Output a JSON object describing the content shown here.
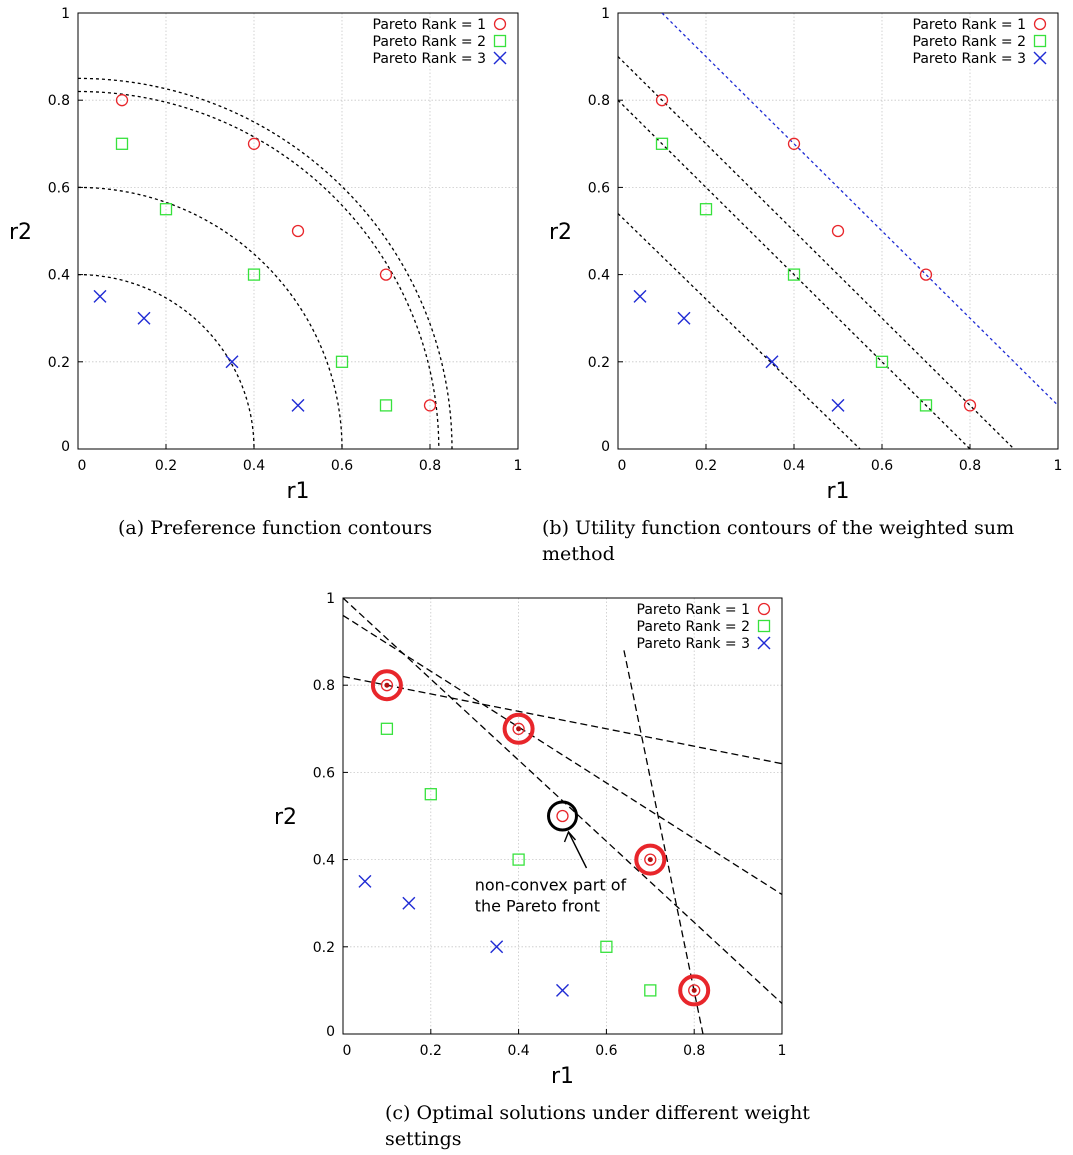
{
  "chart_data": [
    {
      "id": "a",
      "type": "scatter",
      "title": "",
      "caption": "(a) Preference function contours",
      "xlabel": "r1",
      "ylabel": "r2",
      "xlim": [
        0,
        1
      ],
      "ylim": [
        0,
        1
      ],
      "xticks": [
        "0",
        "0.2",
        "0.4",
        "0.6",
        "0.8",
        "1"
      ],
      "yticks": [
        "0",
        "0.2",
        "0.4",
        "0.6",
        "0.8",
        "1"
      ],
      "grid": true,
      "legend_position": "top-right",
      "series": [
        {
          "name": "Pareto Rank = 1",
          "marker": "circle",
          "color": "#e8262b",
          "points": [
            [
              0.1,
              0.8
            ],
            [
              0.4,
              0.7
            ],
            [
              0.5,
              0.5
            ],
            [
              0.7,
              0.4
            ],
            [
              0.8,
              0.1
            ]
          ]
        },
        {
          "name": "Pareto Rank = 2",
          "marker": "square",
          "color": "#37e23c",
          "points": [
            [
              0.1,
              0.7
            ],
            [
              0.2,
              0.55
            ],
            [
              0.4,
              0.4
            ],
            [
              0.6,
              0.2
            ],
            [
              0.7,
              0.1
            ]
          ]
        },
        {
          "name": "Pareto Rank = 3",
          "marker": "x",
          "color": "#1f2bd4",
          "points": [
            [
              0.05,
              0.35
            ],
            [
              0.15,
              0.3
            ],
            [
              0.35,
              0.2
            ],
            [
              0.5,
              0.1
            ]
          ]
        }
      ],
      "contours": [
        {
          "shape": "quarter-circle",
          "radius": 0.4,
          "color": "#000000"
        },
        {
          "shape": "quarter-circle",
          "radius": 0.6,
          "color": "#000000"
        },
        {
          "shape": "quarter-circle",
          "radius": 0.82,
          "color": "#000000"
        },
        {
          "shape": "quarter-circle",
          "radius": 0.85,
          "color": "#000000"
        }
      ]
    },
    {
      "id": "b",
      "type": "scatter",
      "title": "",
      "caption": "(b) Utility function contours of the weighted sum method",
      "xlabel": "r1",
      "ylabel": "r2",
      "xlim": [
        0,
        1
      ],
      "ylim": [
        0,
        1
      ],
      "xticks": [
        "0",
        "0.2",
        "0.4",
        "0.6",
        "0.8",
        "1"
      ],
      "yticks": [
        "0",
        "0.2",
        "0.4",
        "0.6",
        "0.8",
        "1"
      ],
      "grid": true,
      "legend_position": "top-right",
      "series": [
        {
          "name": "Pareto Rank = 1",
          "marker": "circle",
          "color": "#e8262b",
          "points": [
            [
              0.1,
              0.8
            ],
            [
              0.4,
              0.7
            ],
            [
              0.5,
              0.5
            ],
            [
              0.7,
              0.4
            ],
            [
              0.8,
              0.1
            ]
          ]
        },
        {
          "name": "Pareto Rank = 2",
          "marker": "square",
          "color": "#37e23c",
          "points": [
            [
              0.1,
              0.7
            ],
            [
              0.2,
              0.55
            ],
            [
              0.4,
              0.4
            ],
            [
              0.6,
              0.2
            ],
            [
              0.7,
              0.1
            ]
          ]
        },
        {
          "name": "Pareto Rank = 3",
          "marker": "x",
          "color": "#1f2bd4",
          "points": [
            [
              0.05,
              0.35
            ],
            [
              0.15,
              0.3
            ],
            [
              0.35,
              0.2
            ],
            [
              0.5,
              0.1
            ]
          ]
        }
      ],
      "contours": [
        {
          "shape": "line",
          "from": [
            0.1,
            1.0
          ],
          "to": [
            1.0,
            0.1
          ],
          "color": "#1f2bd4"
        },
        {
          "shape": "line",
          "from": [
            0.0,
            0.9
          ],
          "to": [
            0.9,
            0.0
          ],
          "color": "#000000"
        },
        {
          "shape": "line",
          "from": [
            0.0,
            0.8
          ],
          "to": [
            0.8,
            0.0
          ],
          "color": "#000000"
        },
        {
          "shape": "line",
          "from": [
            0.0,
            0.54
          ],
          "to": [
            0.55,
            0.0
          ],
          "color": "#000000"
        }
      ]
    },
    {
      "id": "c",
      "type": "scatter",
      "title": "",
      "caption": "(c) Optimal solutions under different weight settings",
      "xlabel": "r1",
      "ylabel": "r2",
      "xlim": [
        0,
        1
      ],
      "ylim": [
        0,
        1
      ],
      "xticks": [
        "0",
        "0.2",
        "0.4",
        "0.6",
        "0.8",
        "1"
      ],
      "yticks": [
        "0",
        "0.2",
        "0.4",
        "0.6",
        "0.8",
        "1"
      ],
      "grid": true,
      "legend_position": "top-right",
      "series": [
        {
          "name": "Pareto Rank = 1",
          "marker": "circle",
          "color": "#e8262b",
          "points": [
            [
              0.1,
              0.8
            ],
            [
              0.4,
              0.7
            ],
            [
              0.5,
              0.5
            ],
            [
              0.7,
              0.4
            ],
            [
              0.8,
              0.1
            ]
          ]
        },
        {
          "name": "Pareto Rank = 2",
          "marker": "square",
          "color": "#37e23c",
          "points": [
            [
              0.1,
              0.7
            ],
            [
              0.2,
              0.55
            ],
            [
              0.4,
              0.4
            ],
            [
              0.6,
              0.2
            ],
            [
              0.7,
              0.1
            ]
          ]
        },
        {
          "name": "Pareto Rank = 3",
          "marker": "x",
          "color": "#1f2bd4",
          "points": [
            [
              0.05,
              0.35
            ],
            [
              0.15,
              0.3
            ],
            [
              0.35,
              0.2
            ],
            [
              0.5,
              0.1
            ]
          ]
        }
      ],
      "contours": [
        {
          "shape": "line",
          "from": [
            0.0,
            0.82
          ],
          "to": [
            1.0,
            0.62
          ],
          "color": "#000000"
        },
        {
          "shape": "line",
          "from": [
            0.0,
            0.96
          ],
          "to": [
            1.0,
            0.32
          ],
          "color": "#000000"
        },
        {
          "shape": "line",
          "from": [
            0.0,
            1.0
          ],
          "to": [
            1.0,
            0.07
          ],
          "color": "#000000"
        },
        {
          "shape": "line",
          "from": [
            0.64,
            0.88
          ],
          "to": [
            0.82,
            0.0
          ],
          "color": "#000000"
        }
      ],
      "highlights": [
        {
          "at": [
            0.1,
            0.8
          ],
          "color": "#e8262b"
        },
        {
          "at": [
            0.4,
            0.7
          ],
          "color": "#e8262b"
        },
        {
          "at": [
            0.7,
            0.4
          ],
          "color": "#e8262b"
        },
        {
          "at": [
            0.8,
            0.1
          ],
          "color": "#e8262b"
        },
        {
          "at": [
            0.5,
            0.5
          ],
          "color": "#000000"
        }
      ],
      "annotation": {
        "lines": [
          "non-convex part of",
          "the Pareto front"
        ],
        "points_to": [
          0.5,
          0.5
        ]
      }
    }
  ]
}
